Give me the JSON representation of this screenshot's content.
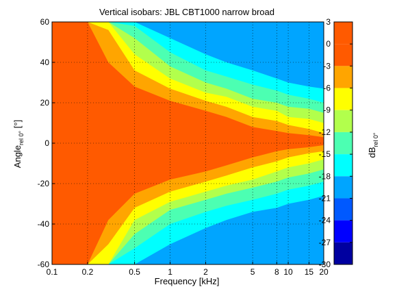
{
  "chart_data": {
    "type": "heatmap",
    "title": "Vertical isobars: JBL  CBT1000  narrow broad",
    "xlabel": "Frequency [kHz]",
    "ylabel": {
      "main": "Angle",
      "sub": "rel 0°",
      "unit": " [°]"
    },
    "colorbar_label": {
      "main": "dB",
      "sub": "rel 0°"
    },
    "x_scale": "log",
    "xlim": [
      0.1,
      20
    ],
    "ylim": [
      -60,
      60
    ],
    "x_ticks": [
      {
        "value": 0.1,
        "label": "0.1"
      },
      {
        "value": 0.2,
        "label": "0.2"
      },
      {
        "value": 0.5,
        "label": "0.5"
      },
      {
        "value": 1,
        "label": "1"
      },
      {
        "value": 2,
        "label": "2"
      },
      {
        "value": 5,
        "label": "5"
      },
      {
        "value": 8,
        "label": "8"
      },
      {
        "value": 10,
        "label": "10"
      },
      {
        "value": 15,
        "label": "15"
      },
      {
        "value": 20,
        "label": "20"
      }
    ],
    "y_ticks": [
      {
        "value": 60,
        "label": "60"
      },
      {
        "value": 40,
        "label": "40"
      },
      {
        "value": 20,
        "label": "20"
      },
      {
        "value": 0,
        "label": "0"
      },
      {
        "value": -20,
        "label": "-20"
      },
      {
        "value": -40,
        "label": "-40"
      },
      {
        "value": -60,
        "label": "-60"
      }
    ],
    "grid": "dotted",
    "colorbar": {
      "placement": "right",
      "ticks": [
        "3",
        "0",
        "-3",
        "-6",
        "-9",
        "-12",
        "-15",
        "-18",
        "-21",
        "-24",
        "-27",
        "-30"
      ],
      "levels": [
        {
          "min": 0,
          "max": 3,
          "color": "#ff5a00"
        },
        {
          "min": -3,
          "max": 0,
          "color": "#ff5a00"
        },
        {
          "min": -6,
          "max": -3,
          "color": "#ffa500"
        },
        {
          "min": -9,
          "max": -6,
          "color": "#ffff00"
        },
        {
          "min": -12,
          "max": -9,
          "color": "#b2ff4c"
        },
        {
          "min": -15,
          "max": -12,
          "color": "#4cffb2"
        },
        {
          "min": -18,
          "max": -15,
          "color": "#00ffff"
        },
        {
          "min": -21,
          "max": -18,
          "color": "#00a5ff"
        },
        {
          "min": -24,
          "max": -21,
          "color": "#0059ff"
        },
        {
          "min": -27,
          "max": -24,
          "color": "#0000ff"
        },
        {
          "min": -30,
          "max": -27,
          "color": "#0000a0"
        }
      ]
    },
    "beamwidth_contours_deg": {
      "description": "angle (deg) at which each isobar level is crossed, upper and lower half",
      "freq_khz": [
        0.1,
        0.2,
        0.3,
        0.5,
        1,
        2,
        3,
        5,
        8,
        10,
        15,
        20
      ],
      "upper": {
        "-3": [
          60,
          60,
          40,
          28,
          21,
          16,
          13,
          8,
          6,
          5,
          4,
          3
        ],
        "-6": [
          60,
          60,
          56,
          36,
          27,
          21,
          18,
          13,
          11,
          9,
          7,
          5
        ],
        "-9": [
          60,
          60,
          60,
          44,
          32,
          25,
          23,
          18,
          16,
          13,
          12,
          10
        ],
        "-12": [
          60,
          60,
          60,
          52,
          38,
          30,
          27,
          22,
          20,
          18,
          17,
          15
        ],
        "-15": [
          60,
          60,
          60,
          58,
          45,
          36,
          33,
          29,
          26,
          24,
          22,
          20
        ],
        "-18": [
          60,
          60,
          60,
          60,
          52,
          44,
          40,
          36,
          32,
          30,
          28,
          27
        ]
      },
      "lower": {
        "-3": [
          -60,
          -60,
          -38,
          -25,
          -18,
          -14,
          -11,
          -7,
          -4,
          -3,
          -2,
          -1
        ],
        "-6": [
          -60,
          -60,
          -50,
          -32,
          -24,
          -19,
          -16,
          -12,
          -9,
          -7,
          -5,
          -4
        ],
        "-9": [
          -60,
          -60,
          -60,
          -38,
          -29,
          -24,
          -21,
          -18,
          -14,
          -12,
          -10,
          -8
        ],
        "-12": [
          -60,
          -60,
          -60,
          -45,
          -33,
          -28,
          -25,
          -22,
          -19,
          -17,
          -15,
          -13
        ],
        "-15": [
          -60,
          -60,
          -60,
          -52,
          -40,
          -34,
          -31,
          -28,
          -25,
          -23,
          -21,
          -19
        ],
        "-18": [
          -60,
          -60,
          -60,
          -60,
          -50,
          -42,
          -38,
          -34,
          -32,
          -30,
          -28,
          -26
        ]
      }
    }
  }
}
